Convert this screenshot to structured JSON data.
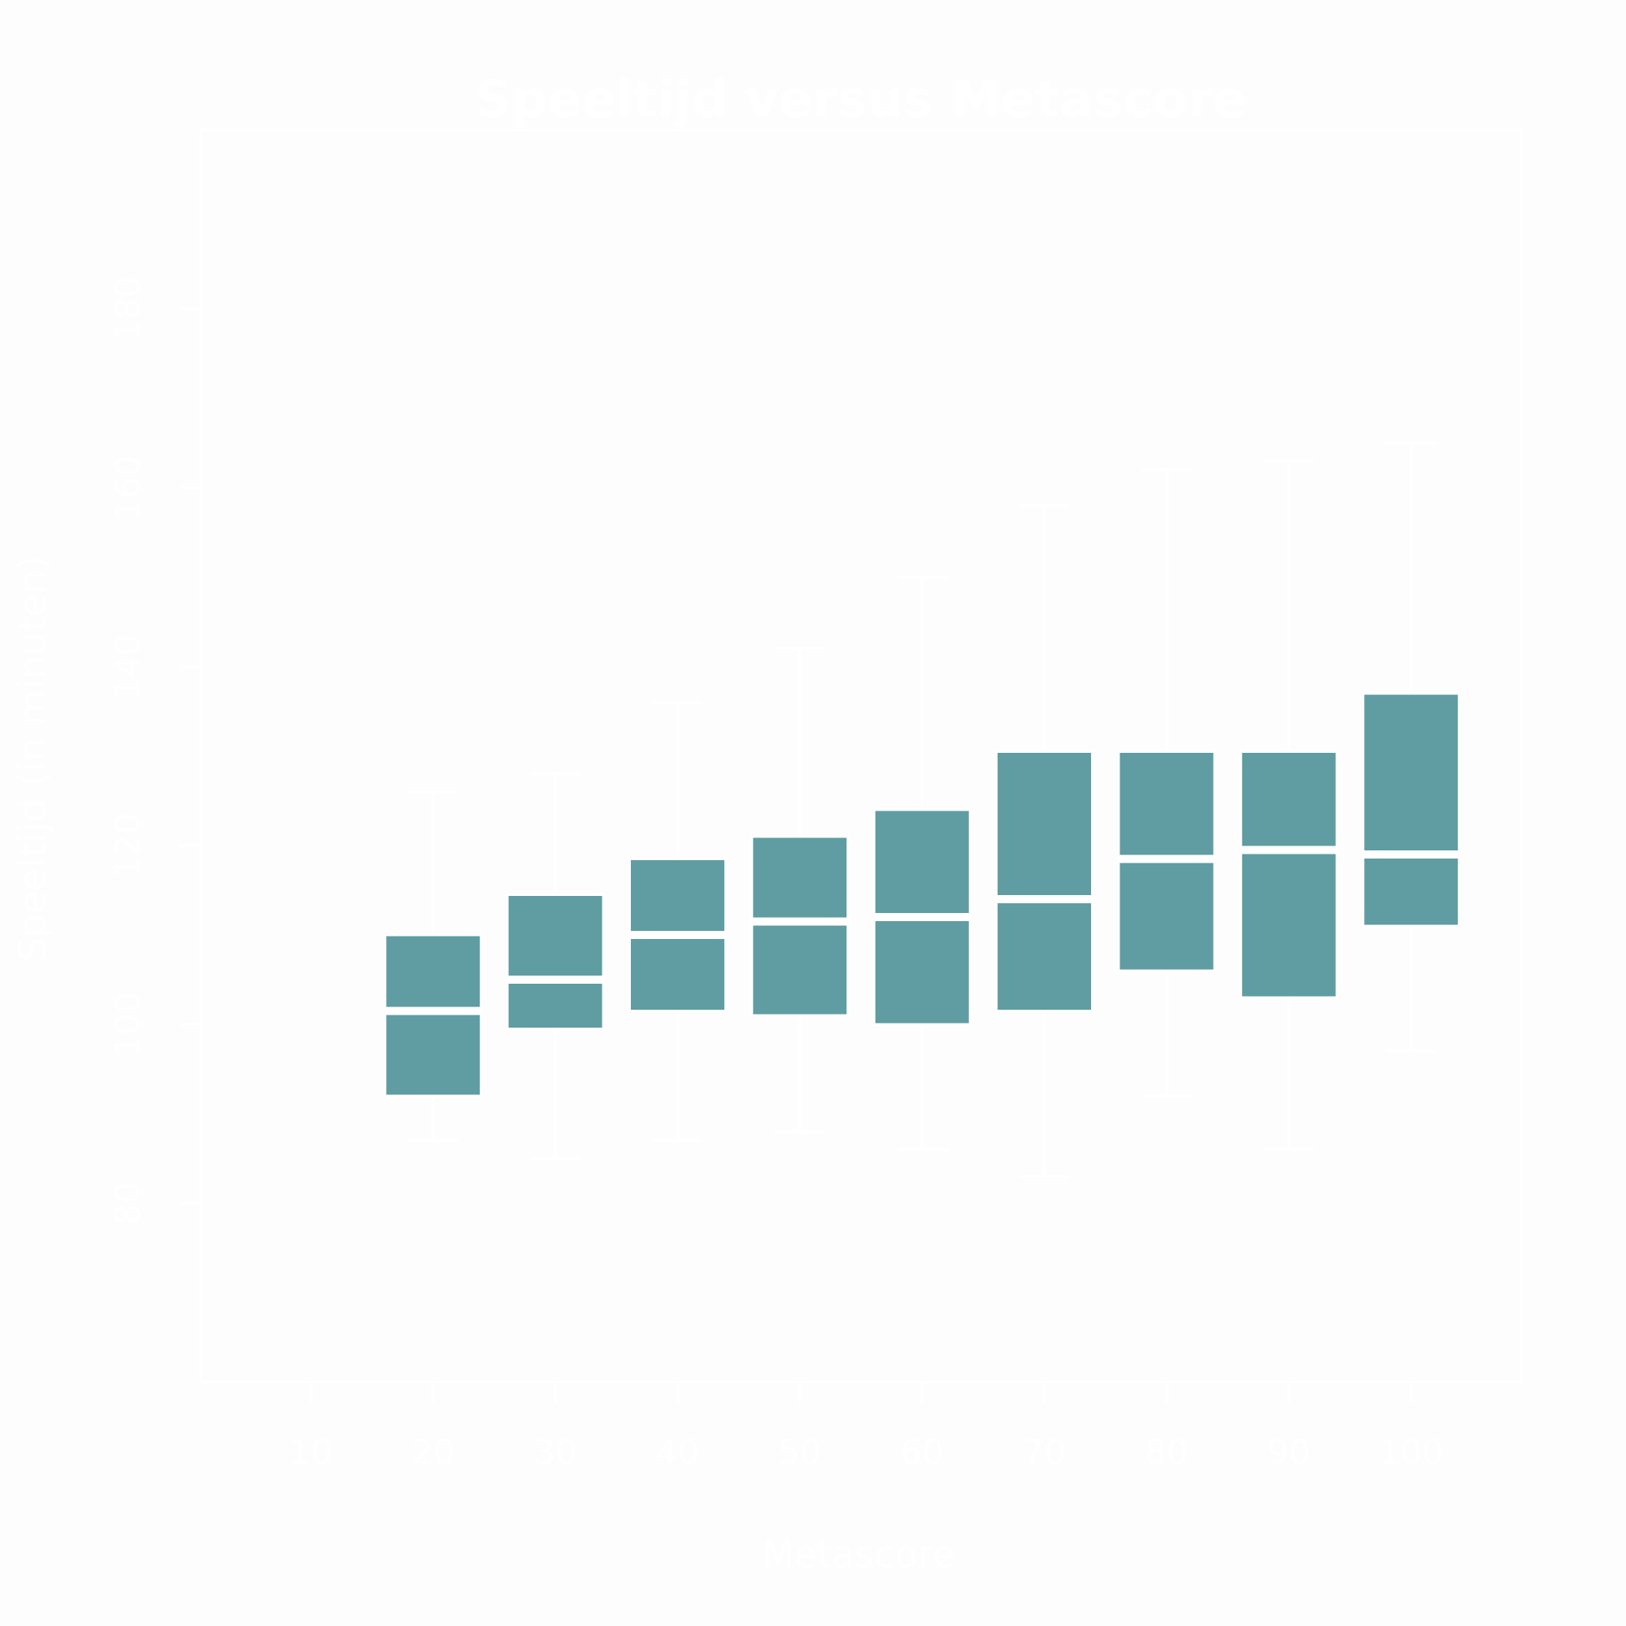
{
  "chart_data": {
    "type": "boxplot",
    "title": "Speeltijd versus Metascore",
    "xlabel": "Metascore",
    "ylabel": "Speeltijd (in minuten)",
    "x_ticks": [
      10,
      20,
      30,
      40,
      50,
      60,
      70,
      80,
      90,
      100
    ],
    "y_ticks": [
      80,
      100,
      120,
      140,
      160,
      180
    ],
    "x_axis": {
      "min": 1,
      "max": 109
    },
    "y_axis": {
      "min": 60,
      "max": 200
    },
    "grid": false,
    "legend": false,
    "boxes": [
      {
        "x": 20,
        "whisker_low": 87,
        "q1": 92,
        "median": 101.5,
        "q3": 110,
        "whisker_high": 126
      },
      {
        "x": 30,
        "whisker_low": 85,
        "q1": 99.5,
        "median": 105,
        "q3": 114.5,
        "whisker_high": 128
      },
      {
        "x": 40,
        "whisker_low": 87,
        "q1": 101.5,
        "median": 110,
        "q3": 118.5,
        "whisker_high": 136
      },
      {
        "x": 50,
        "whisker_low": 88,
        "q1": 101,
        "median": 111.5,
        "q3": 121,
        "whisker_high": 142
      },
      {
        "x": 60,
        "whisker_low": 86,
        "q1": 100,
        "median": 112,
        "q3": 124,
        "whisker_high": 150
      },
      {
        "x": 70,
        "whisker_low": 83,
        "q1": 101.5,
        "median": 114,
        "q3": 130.5,
        "whisker_high": 158
      },
      {
        "x": 80,
        "whisker_low": 92,
        "q1": 106,
        "median": 118.5,
        "q3": 130.5,
        "whisker_high": 162
      },
      {
        "x": 90,
        "whisker_low": 86,
        "q1": 103,
        "median": 119.5,
        "q3": 130.5,
        "whisker_high": 163
      },
      {
        "x": 100,
        "whisker_low": 97,
        "q1": 111,
        "median": 119,
        "q3": 137,
        "whisker_high": 165
      }
    ],
    "colors": {
      "box_fill": "#5f9da2",
      "elements": "#ffffff",
      "background": "#fdfdfd"
    }
  }
}
